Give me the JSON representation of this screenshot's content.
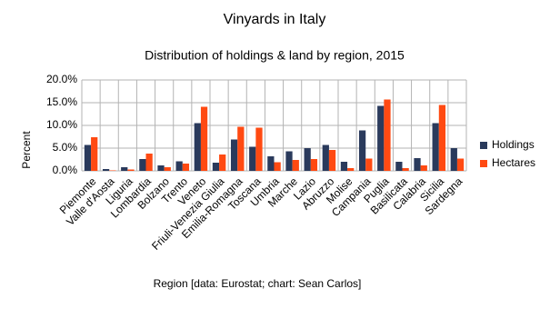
{
  "chart_data": {
    "type": "bar",
    "title": "Vinyards in Italy",
    "subtitle": "Distribution of holdings & land by region, 2015",
    "x_label": "Region [data: Eurostat; chart: Sean Carlos]",
    "y_label": "Percent",
    "categories": [
      "Piemonte",
      "Valle d'Aosta",
      "Liguria",
      "Lombardia",
      "Bolzano",
      "Trento",
      "Veneto",
      "Friuli-Venezia Giulia",
      "Emilia-Romagna",
      "Toscana",
      "Umbria",
      "Marche",
      "Lazio",
      "Abruzzo",
      "Molise",
      "Campania",
      "Puglia",
      "Basilicata",
      "Calabria",
      "Sicilia",
      "Sardegna"
    ],
    "series": [
      {
        "name": "Holdings",
        "color": "#2a3a5c",
        "values": [
          5.7,
          0.4,
          0.8,
          2.6,
          1.2,
          2.1,
          10.5,
          1.8,
          6.9,
          5.3,
          3.2,
          4.3,
          5.0,
          5.7,
          2.0,
          8.9,
          14.3,
          2.0,
          2.8,
          10.5,
          5.0
        ]
      },
      {
        "name": "Hectares",
        "color": "#ff4a12",
        "values": [
          7.4,
          0.1,
          0.3,
          3.8,
          0.8,
          1.6,
          14.1,
          3.6,
          9.7,
          9.5,
          1.9,
          2.4,
          2.6,
          4.6,
          0.6,
          2.7,
          15.7,
          0.6,
          1.2,
          14.5,
          2.7
        ]
      }
    ],
    "ylim": [
      0,
      20
    ],
    "yticks": [
      {
        "value": 0,
        "label": "0.0%"
      },
      {
        "value": 5,
        "label": "5.0%"
      },
      {
        "value": 10,
        "label": "10.0%"
      },
      {
        "value": 15,
        "label": "15.0%"
      },
      {
        "value": 20,
        "label": "20.0%"
      }
    ],
    "grid": true,
    "legend": "right"
  }
}
